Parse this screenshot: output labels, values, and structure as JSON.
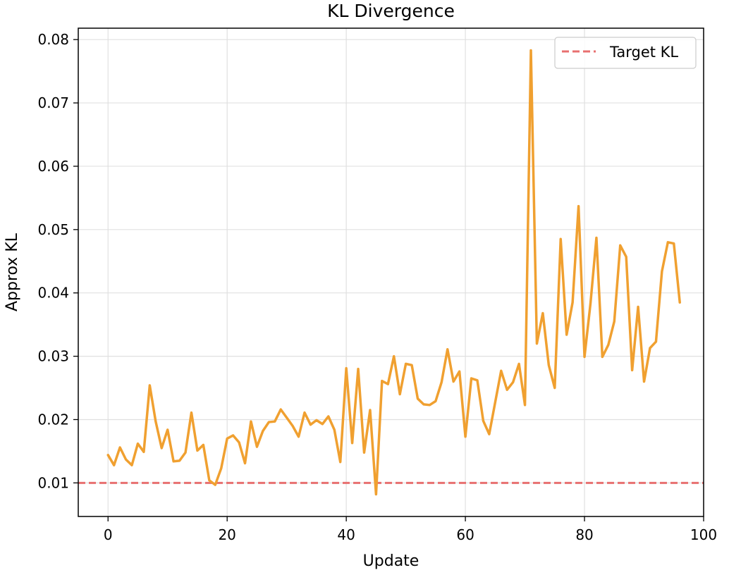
{
  "chart_data": {
    "type": "line",
    "title": "KL Divergence",
    "xlabel": "Update",
    "ylabel": "Approx KL",
    "xlim": [
      -5,
      100
    ],
    "ylim": [
      0.0047,
      0.0818
    ],
    "xticks": [
      0,
      20,
      40,
      60,
      80,
      100
    ],
    "xtick_labels": [
      "0",
      "20",
      "40",
      "60",
      "80",
      "100"
    ],
    "yticks": [
      0.01,
      0.02,
      0.03,
      0.04,
      0.05,
      0.06,
      0.07,
      0.08
    ],
    "ytick_labels": [
      "0.01",
      "0.02",
      "0.03",
      "0.04",
      "0.05",
      "0.06",
      "0.07",
      "0.08"
    ],
    "grid": true,
    "legend_position": "top-right",
    "series": [
      {
        "color": "#f0a030",
        "x": [
          0,
          1,
          2,
          3,
          4,
          5,
          6,
          7,
          8,
          9,
          10,
          11,
          12,
          13,
          14,
          15,
          16,
          17,
          18,
          19,
          20,
          21,
          22,
          23,
          24,
          25,
          26,
          27,
          28,
          29,
          30,
          31,
          32,
          33,
          34,
          35,
          36,
          37,
          38,
          39,
          40,
          41,
          42,
          43,
          44,
          45,
          46,
          47,
          48,
          49,
          50,
          51,
          52,
          53,
          54,
          55,
          56,
          57,
          58,
          59,
          60,
          61,
          62,
          63,
          64,
          65,
          66,
          67,
          68,
          69,
          70,
          71,
          72,
          73,
          74,
          75,
          76,
          77,
          78,
          79,
          80,
          81,
          82,
          83,
          84,
          85,
          86,
          87,
          88,
          89,
          90,
          91,
          92,
          93,
          94,
          95,
          96
        ],
        "values": [
          0.0144,
          0.0128,
          0.0156,
          0.0137,
          0.0128,
          0.0162,
          0.0149,
          0.0254,
          0.0197,
          0.0155,
          0.0184,
          0.0134,
          0.0135,
          0.0148,
          0.0211,
          0.0151,
          0.016,
          0.0104,
          0.0097,
          0.0123,
          0.017,
          0.0175,
          0.0164,
          0.0131,
          0.0197,
          0.0157,
          0.0182,
          0.0196,
          0.0197,
          0.0216,
          0.0203,
          0.019,
          0.0173,
          0.0211,
          0.0192,
          0.0199,
          0.0193,
          0.0205,
          0.0184,
          0.0133,
          0.0281,
          0.0163,
          0.028,
          0.0148,
          0.0215,
          0.0082,
          0.0261,
          0.0256,
          0.03,
          0.024,
          0.0288,
          0.0286,
          0.0233,
          0.0224,
          0.0223,
          0.0229,
          0.0259,
          0.0311,
          0.026,
          0.0276,
          0.0173,
          0.0265,
          0.0262,
          0.0198,
          0.0177,
          0.0227,
          0.0277,
          0.0247,
          0.0259,
          0.0288,
          0.0223,
          0.0783,
          0.032,
          0.0368,
          0.0286,
          0.025,
          0.0485,
          0.0334,
          0.0385,
          0.0537,
          0.0299,
          0.0383,
          0.0487,
          0.0299,
          0.0318,
          0.0355,
          0.0475,
          0.0457,
          0.0278,
          0.0378,
          0.026,
          0.0313,
          0.0323,
          0.0434,
          0.048,
          0.0478,
          0.0385
        ]
      },
      {
        "name": "Target KL",
        "color": "#e87070",
        "style": "dashed",
        "value": 0.01
      }
    ]
  }
}
